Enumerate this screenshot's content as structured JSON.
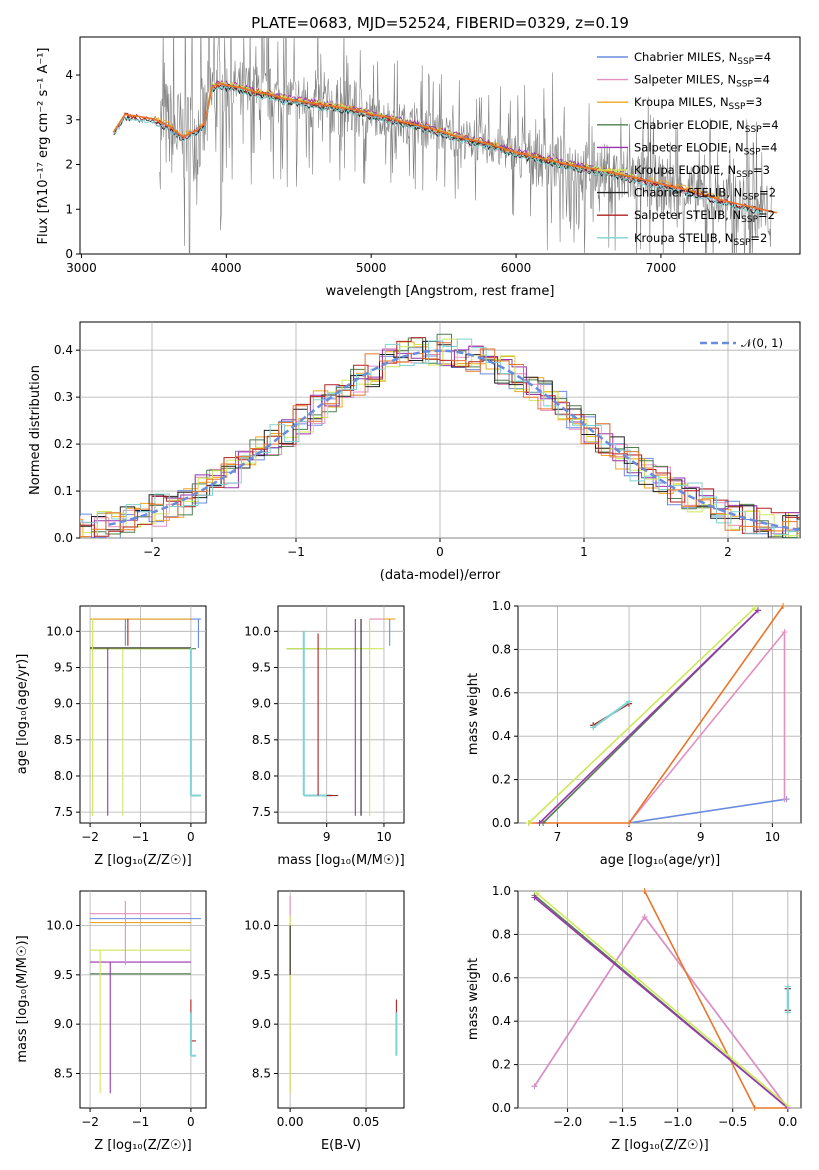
{
  "figure_title": "PLATE=0683, MJD=52524, FIBERID=0329, z=0.19",
  "colors": {
    "chabrier_miles": "#6a8bde",
    "salpeter_miles": "#e58fc0",
    "kroupa_miles": "#f0a520",
    "chabrier_elodie": "#4f7f4f",
    "salpeter_elodie": "#9a35b0",
    "kroupa_elodie": "#cfe85a",
    "chabrier_stelib": "#222222",
    "salpeter_stelib": "#b22222",
    "kroupa_stelib": "#7fd3d3",
    "data": "#808080",
    "model_main": "#e8762a",
    "normal": "#6a8bde"
  },
  "legend_spectrum": [
    {
      "text": "Chabrier MILES, N",
      "sub": "SSP",
      "tail": "=4",
      "color": "#6a8bde"
    },
    {
      "text": "Salpeter MILES, N",
      "sub": "SSP",
      "tail": "=4",
      "color": "#e58fc0"
    },
    {
      "text": "Kroupa MILES, N",
      "sub": "SSP",
      "tail": "=3",
      "color": "#f0a520"
    },
    {
      "text": "Chabrier ELODIE, N",
      "sub": "SSP",
      "tail": "=4",
      "color": "#4f7f4f"
    },
    {
      "text": "Salpeter ELODIE, N",
      "sub": "SSP",
      "tail": "=4",
      "color": "#9a35b0"
    },
    {
      "text": "Kroupa ELODIE, N",
      "sub": "SSP",
      "tail": "=3",
      "color": "#cfe85a"
    },
    {
      "text": "Chabrier STELIB, N",
      "sub": "SSP",
      "tail": "=2",
      "color": "#222222"
    },
    {
      "text": "Salpeter STELIB, N",
      "sub": "SSP",
      "tail": "=2",
      "color": "#b22222"
    },
    {
      "text": "Kroupa STELIB, N",
      "sub": "SSP",
      "tail": "=2",
      "color": "#7fd3d3"
    }
  ],
  "chart_data": [
    {
      "type": "line",
      "panel": "spectrum",
      "ylabel": "Flux [fλ10⁻¹⁷ erg cm⁻² s⁻¹ A⁻¹]",
      "xlabel": "wavelength [Angstrom, rest frame]",
      "xlim": [
        2990,
        7960
      ],
      "ylim": [
        0,
        4.85
      ],
      "xticks": [
        "3000",
        "4000",
        "5000",
        "6000",
        "7000"
      ],
      "yticks": [
        "0",
        "1",
        "2",
        "3",
        "4"
      ],
      "model_x": [
        3220,
        3300,
        3400,
        3500,
        3560,
        3600,
        3700,
        3800,
        3850,
        3900,
        3950,
        4000,
        4100,
        4200,
        4300,
        4400,
        4500,
        4600,
        4700,
        4800,
        4900,
        5000,
        5100,
        5200,
        5400,
        5600,
        5800,
        6000,
        6200,
        6400,
        6600,
        6800,
        7000,
        7200,
        7400,
        7600,
        7800
      ],
      "model_y": [
        2.7,
        3.1,
        3.05,
        3.0,
        2.9,
        2.85,
        2.6,
        2.75,
        2.9,
        3.7,
        3.8,
        3.75,
        3.7,
        3.6,
        3.55,
        3.45,
        3.4,
        3.35,
        3.3,
        3.25,
        3.2,
        3.1,
        3.05,
        2.95,
        2.8,
        2.6,
        2.45,
        2.25,
        2.1,
        1.95,
        1.85,
        1.7,
        1.55,
        1.4,
        1.2,
        1.05,
        0.9
      ]
    },
    {
      "type": "line",
      "panel": "residuals",
      "xlabel": "(data-model)/error",
      "ylabel": "Normed distribution",
      "xlim": [
        -2.5,
        2.5
      ],
      "ylim": [
        0,
        0.46
      ],
      "xticks": [
        "−2",
        "−1",
        "0",
        "1",
        "2"
      ],
      "yticks": [
        "0.0",
        "0.1",
        "0.2",
        "0.3",
        "0.4"
      ],
      "legend": "𝒩(0, 1)",
      "series": [
        {
          "name": "normal",
          "function": "N(0,1)"
        }
      ]
    },
    {
      "type": "scatter",
      "panel": "age_vs_Z",
      "xlabel": "Z [log₁₀(Z/Z☉)]",
      "ylabel": "age  [log₁₀(age/yr)]",
      "xlim": [
        -2.2,
        0.3
      ],
      "ylim": [
        7.35,
        10.35
      ],
      "xticks": [
        "−2",
        "−1",
        "0"
      ],
      "yticks": [
        "7.5",
        "8.0",
        "8.5",
        "9.0",
        "9.5",
        "10.0"
      ]
    },
    {
      "type": "scatter",
      "panel": "age_vs_mass",
      "xlabel": "mass [log₁₀(M/M☉)]",
      "xlim": [
        8.15,
        10.35
      ],
      "ylim": [
        7.35,
        10.35
      ],
      "xticks": [
        "9",
        "10"
      ],
      "yticks": [
        "7.5",
        "8.0",
        "8.5",
        "9.0",
        "9.5",
        "10.0"
      ]
    },
    {
      "type": "line",
      "panel": "massweight_vs_age",
      "xlabel": "age  [log₁₀(age/yr)]",
      "ylabel": "mass weight",
      "xlim": [
        6.45,
        10.4
      ],
      "ylim": [
        0,
        1.0
      ],
      "xticks": [
        "7",
        "8",
        "9",
        "10"
      ],
      "yticks": [
        "0.0",
        "0.2",
        "0.4",
        "0.6",
        "0.8",
        "1.0"
      ],
      "series": [
        {
          "name": "Chabrier MILES",
          "x": [
            8.0,
            10.2
          ],
          "y": [
            0.0,
            0.11
          ]
        },
        {
          "name": "Salpeter MILES",
          "x": [
            8.0,
            10.17,
            10.17
          ],
          "y": [
            0.0,
            0.88,
            0.11
          ]
        },
        {
          "name": "Kroupa MILES",
          "x": [
            6.6,
            8.0,
            10.15
          ],
          "y": [
            0.0,
            0.0,
            1.0
          ]
        },
        {
          "name": "Chabrier ELODIE",
          "x": [
            6.8,
            9.8
          ],
          "y": [
            0.0,
            0.98
          ]
        },
        {
          "name": "Salpeter ELODIE",
          "x": [
            6.75,
            9.8
          ],
          "y": [
            0.0,
            0.98
          ]
        },
        {
          "name": "Kroupa ELODIE",
          "x": [
            6.6,
            9.75
          ],
          "y": [
            0.0,
            0.99
          ]
        },
        {
          "name": "Chabrier STELIB",
          "x": [
            7.5,
            8.0
          ],
          "y": [
            0.45,
            0.55
          ]
        },
        {
          "name": "Salpeter STELIB",
          "x": [
            7.5,
            8.0
          ],
          "y": [
            0.45,
            0.55
          ]
        },
        {
          "name": "Kroupa STELIB",
          "x": [
            7.5,
            8.0
          ],
          "y": [
            0.44,
            0.56
          ]
        }
      ]
    },
    {
      "type": "scatter",
      "panel": "mass_vs_Z",
      "xlabel": "Z [log₁₀(Z/Z☉)]",
      "ylabel": "mass [log₁₀(M/M☉)]",
      "xlim": [
        -2.2,
        0.3
      ],
      "ylim": [
        8.15,
        10.35
      ],
      "xticks": [
        "−2",
        "−1",
        "0"
      ],
      "yticks": [
        "8.5",
        "9.0",
        "9.5",
        "10.0"
      ]
    },
    {
      "type": "scatter",
      "panel": "mass_vs_ebv",
      "xlabel": "E(B-V)",
      "xlim": [
        -0.008,
        0.075
      ],
      "ylim": [
        8.15,
        10.35
      ],
      "xticks": [
        "0.00",
        "0.05"
      ],
      "yticks": [
        "8.5",
        "9.0",
        "9.5",
        "10.0"
      ]
    },
    {
      "type": "line",
      "panel": "massweight_vs_Z",
      "xlabel": "Z [log₁₀(Z/Z☉)]",
      "ylabel": "mass weight",
      "xlim": [
        -2.45,
        0.12
      ],
      "ylim": [
        0,
        1.0
      ],
      "xticks": [
        "−2.0",
        "−1.5",
        "−1.0",
        "−0.5",
        "0.0"
      ],
      "yticks": [
        "0.0",
        "0.2",
        "0.4",
        "0.6",
        "0.8",
        "1.0"
      ],
      "series": [
        {
          "name": "Chabrier MILES",
          "x": [
            -2.3,
            -1.3,
            0.0
          ],
          "y": [
            0.1,
            0.88,
            0.0
          ]
        },
        {
          "name": "Salpeter MILES",
          "x": [
            -2.3,
            -1.3,
            0.0
          ],
          "y": [
            0.1,
            0.88,
            0.0
          ]
        },
        {
          "name": "Kroupa MILES",
          "x": [
            -1.3,
            -0.3,
            0.0
          ],
          "y": [
            1.0,
            0.0,
            0.0
          ]
        },
        {
          "name": "Chabrier ELODIE",
          "x": [
            -2.3,
            0.0
          ],
          "y": [
            0.98,
            0.0
          ]
        },
        {
          "name": "Salpeter ELODIE",
          "x": [
            -2.3,
            0.0
          ],
          "y": [
            0.97,
            0.0
          ]
        },
        {
          "name": "Kroupa ELODIE",
          "x": [
            -2.28,
            0.0
          ],
          "y": [
            0.99,
            0.01
          ]
        },
        {
          "name": "Chabrier STELIB",
          "x": [
            0.0,
            0.0
          ],
          "y": [
            0.45,
            0.55
          ]
        },
        {
          "name": "Salpeter STELIB",
          "x": [
            0.0,
            0.0
          ],
          "y": [
            0.45,
            0.55
          ]
        },
        {
          "name": "Kroupa STELIB",
          "x": [
            0.0,
            0.0
          ],
          "y": [
            0.44,
            0.56
          ]
        }
      ]
    }
  ]
}
